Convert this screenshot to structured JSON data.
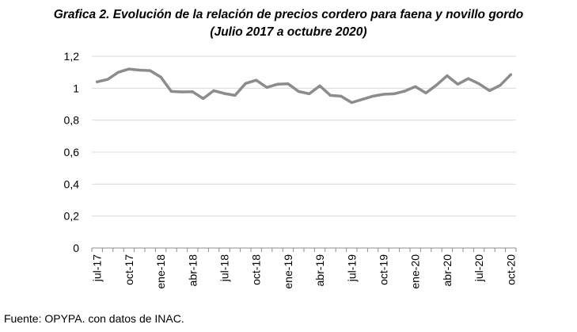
{
  "title_line1": "Grafica 2. Evolución de la relación de precios cordero para faena y novillo gordo",
  "title_line2": "(Julio 2017 a octubre 2020)",
  "source": "Fuente: OPYPA. con datos de INAC.",
  "chart_data": {
    "type": "line",
    "title": "Grafica 2. Evolución de la relación de precios cordero para faena y novillo gordo (Julio 2017 a octubre 2020)",
    "xlabel": "",
    "ylabel": "",
    "ylim": [
      0,
      1.2
    ],
    "yticks": [
      0,
      0.2,
      0.4,
      0.6,
      0.8,
      1,
      1.2
    ],
    "ytick_labels": [
      "0",
      "0,2",
      "0,4",
      "0,6",
      "0,8",
      "1",
      "1,2"
    ],
    "grid": "horizontal",
    "line_color": "#8c8c8c",
    "x": [
      "jul-17",
      "ago-17",
      "sep-17",
      "oct-17",
      "nov-17",
      "dic-17",
      "ene-18",
      "feb-18",
      "mar-18",
      "abr-18",
      "may-18",
      "jun-18",
      "jul-18",
      "ago-18",
      "sep-18",
      "oct-18",
      "nov-18",
      "dic-18",
      "ene-19",
      "feb-19",
      "mar-19",
      "abr-19",
      "may-19",
      "jun-19",
      "jul-19",
      "ago-19",
      "sep-19",
      "oct-19",
      "nov-19",
      "dic-19",
      "ene-20",
      "feb-20",
      "mar-20",
      "abr-20",
      "may-20",
      "jun-20",
      "jul-20",
      "ago-20",
      "sep-20",
      "oct-20"
    ],
    "x_tick_labels": [
      "jul-17",
      "oct-17",
      "ene-18",
      "abr-18",
      "jul-18",
      "oct-18",
      "ene-19",
      "abr-19",
      "jul-19",
      "oct-19",
      "ene-20",
      "abr-20",
      "jul-20",
      "oct-20"
    ],
    "values": [
      1.04,
      1.055,
      1.1,
      1.12,
      1.113,
      1.11,
      1.07,
      0.98,
      0.977,
      0.978,
      0.935,
      0.985,
      0.967,
      0.955,
      1.03,
      1.05,
      1.005,
      1.025,
      1.028,
      0.98,
      0.965,
      1.015,
      0.955,
      0.95,
      0.91,
      0.93,
      0.95,
      0.962,
      0.965,
      0.982,
      1.01,
      0.97,
      1.02,
      1.078,
      1.025,
      1.06,
      1.028,
      0.985,
      1.018,
      1.085
    ]
  }
}
